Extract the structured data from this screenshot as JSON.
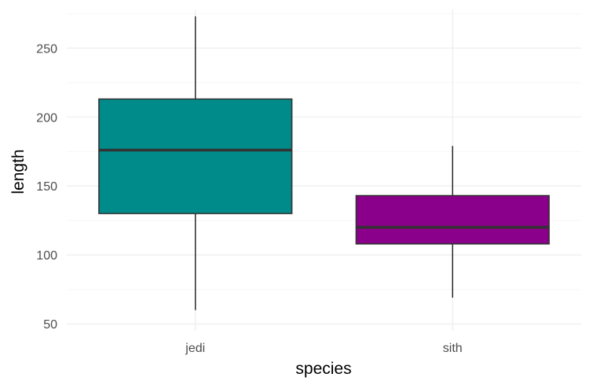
{
  "chart_data": {
    "type": "boxplot",
    "xlabel": "species",
    "ylabel": "length",
    "categories": [
      "jedi",
      "sith"
    ],
    "ylim": [
      45,
      278
    ],
    "y_ticks": [
      50,
      100,
      150,
      200,
      250
    ],
    "grid": true,
    "legend": "none",
    "boxes": [
      {
        "category": "jedi",
        "min": 60,
        "q1": 130,
        "median": 176,
        "q3": 213,
        "max": 273,
        "color": "#008b8b"
      },
      {
        "category": "sith",
        "min": 69,
        "q1": 108,
        "median": 120,
        "q3": 143,
        "max": 179,
        "color": "#8b008b"
      }
    ]
  }
}
